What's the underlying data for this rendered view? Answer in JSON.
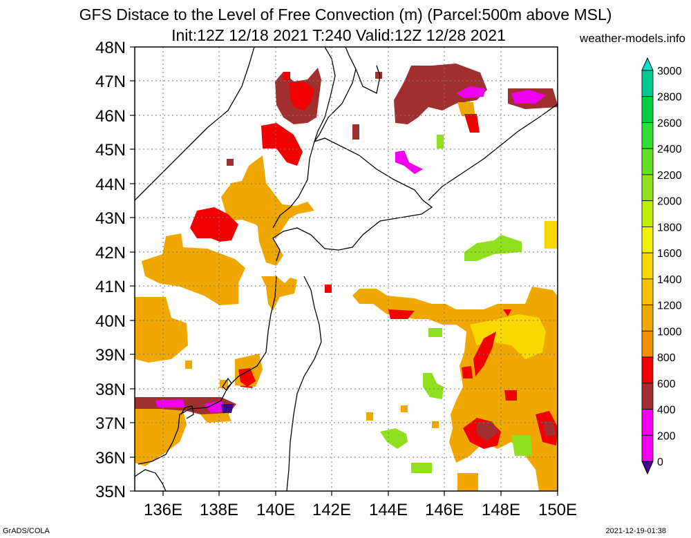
{
  "title_line1": "GFS Distace to the Level of Free Convection (m) (Parcel:500m above MSL)",
  "title_line2": "Init:12Z 12/18 2021 T:240 Valid:12Z 12/28 2021",
  "site": "weather-models.info",
  "footer_left": "GrADS/COLA",
  "footer_right": "2021-12-19-01:38",
  "lat_labels": [
    "48N",
    "47N",
    "46N",
    "45N",
    "44N",
    "43N",
    "42N",
    "41N",
    "40N",
    "39N",
    "38N",
    "37N",
    "36N",
    "35N"
  ],
  "lon_labels": [
    "136E",
    "138E",
    "140E",
    "142E",
    "144E",
    "146E",
    "148E",
    "150E"
  ],
  "colorbar": {
    "labels": [
      "3000",
      "2800",
      "2600",
      "2400",
      "2200",
      "2000",
      "1800",
      "1600",
      "1400",
      "1200",
      "1000",
      "800",
      "600",
      "400",
      "200",
      "0"
    ],
    "colors": [
      "#00e0d0",
      "#00c890",
      "#00d040",
      "#30e030",
      "#60e020",
      "#90e020",
      "#c0f000",
      "#f0f000",
      "#f8d800",
      "#f8c000",
      "#f0a800",
      "#f09000",
      "#f00000",
      "#a03030",
      "#f000f0",
      "#400090"
    ]
  },
  "chart_data": {
    "type": "heatmap",
    "lat_range": [
      35,
      48
    ],
    "lon_range": [
      135,
      150
    ],
    "units": "m"
  }
}
